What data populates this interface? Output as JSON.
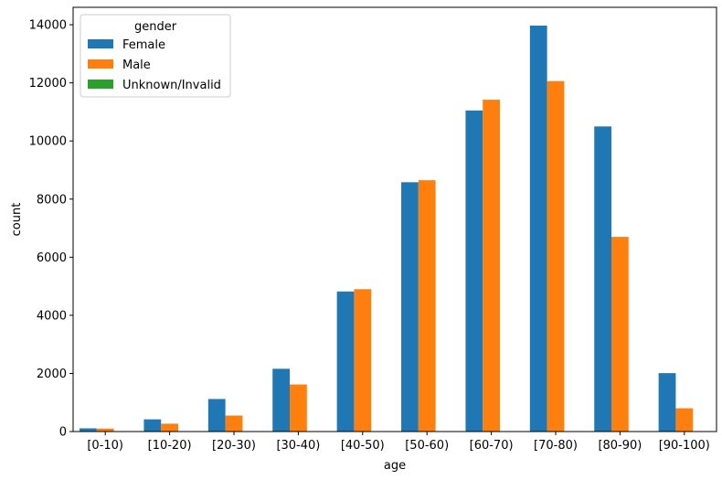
{
  "chart_data": {
    "type": "bar",
    "title": "",
    "xlabel": "age",
    "ylabel": "count",
    "ylim": [
      0,
      14600
    ],
    "yticks": [
      0,
      2000,
      4000,
      6000,
      8000,
      10000,
      12000,
      14000
    ],
    "categories": [
      "[0-10)",
      "[10-20)",
      "[20-30)",
      "[30-40)",
      "[40-50)",
      "[50-60)",
      "[60-70)",
      "[70-80)",
      "[80-90)",
      "[90-100)"
    ],
    "legend": {
      "title": "gender",
      "position": "top-left"
    },
    "grid": false,
    "series": [
      {
        "name": "Female",
        "color": "#1f77b4",
        "values": [
          110,
          420,
          1120,
          2160,
          4820,
          8580,
          11050,
          13970,
          10500,
          2010
        ]
      },
      {
        "name": "Male",
        "color": "#ff7f0e",
        "values": [
          100,
          270,
          550,
          1620,
          4900,
          8650,
          11420,
          12060,
          6700,
          800
        ]
      },
      {
        "name": "Unknown/Invalid",
        "color": "#2ca02c",
        "values": [
          0,
          0,
          0,
          0,
          0,
          0,
          0,
          0,
          0,
          0
        ]
      }
    ]
  }
}
